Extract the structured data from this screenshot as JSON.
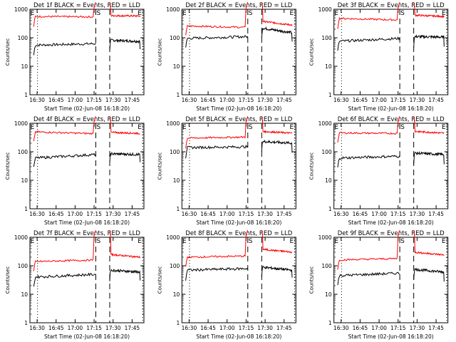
{
  "x_axis": {
    "label": "Start Time (02-Jun-08 16:18:20)",
    "ticks": [
      "16:30",
      "16:45",
      "17:00",
      "17:15",
      "17:30",
      "17:45"
    ],
    "range_min": [
      6,
      96
    ]
  },
  "y_axis": {
    "label": "Counts/sec",
    "ticks": [
      "1",
      "10",
      "100",
      "1000"
    ],
    "range": [
      1,
      1000
    ],
    "scale": "log"
  },
  "markers": {
    "E_label": "E",
    "S_label": "S",
    "dotted_min": [
      12,
      95
    ],
    "dashed_min": [
      58,
      69
    ]
  },
  "colors": {
    "events": "#000000",
    "lld": "#ff0000"
  },
  "chart_data": [
    {
      "type": "line",
      "title": "Det 1f BLACK = Events, RED = LLD",
      "ylabel": "Counts/sec",
      "xlabel": "Start Time (02-Jun-08 16:18:20)",
      "xlim": [
        6,
        96
      ],
      "ylim": [
        1,
        1000
      ],
      "yscale": "log",
      "series": [
        {
          "name": "Events",
          "pre": [
            55,
            62
          ],
          "post": [
            82,
            75
          ]
        },
        {
          "name": "LLD",
          "pre": [
            560,
            540
          ],
          "post": [
            600,
            580
          ]
        }
      ]
    },
    {
      "type": "line",
      "title": "Det 2f BLACK = Events, RED = LLD",
      "ylabel": "Counts/sec",
      "xlabel": "Start Time (02-Jun-08 16:18:20)",
      "xlim": [
        6,
        96
      ],
      "ylim": [
        1,
        1000
      ],
      "yscale": "log",
      "series": [
        {
          "name": "Events",
          "pre": [
            95,
            110
          ],
          "post": [
            220,
            150
          ]
        },
        {
          "name": "LLD",
          "pre": [
            260,
            230
          ],
          "post": [
            380,
            280
          ]
        }
      ]
    },
    {
      "type": "line",
      "title": "Det 3f BLACK = Events, RED = LLD",
      "ylabel": "Counts/sec",
      "xlabel": "Start Time (02-Jun-08 16:18:20)",
      "xlim": [
        6,
        96
      ],
      "ylim": [
        1,
        1000
      ],
      "yscale": "log",
      "series": [
        {
          "name": "Events",
          "pre": [
            75,
            95
          ],
          "post": [
            110,
            105
          ]
        },
        {
          "name": "LLD",
          "pre": [
            480,
            420
          ],
          "post": [
            620,
            560
          ]
        }
      ]
    },
    {
      "type": "line",
      "title": "Det 4f BLACK = Events, RED = LLD",
      "ylabel": "Counts/sec",
      "xlabel": "Start Time (02-Jun-08 16:18:20)",
      "xlim": [
        6,
        96
      ],
      "ylim": [
        1,
        1000
      ],
      "yscale": "log",
      "series": [
        {
          "name": "Events",
          "pre": [
            60,
            80
          ],
          "post": [
            85,
            80
          ]
        },
        {
          "name": "LLD",
          "pre": [
            500,
            430
          ],
          "post": [
            480,
            440
          ]
        }
      ]
    },
    {
      "type": "line",
      "title": "Det 5f BLACK = Events, RED = LLD",
      "ylabel": "Counts/sec",
      "xlabel": "Start Time (02-Jun-08 16:18:20)",
      "xlim": [
        6,
        96
      ],
      "ylim": [
        1,
        1000
      ],
      "yscale": "log",
      "series": [
        {
          "name": "Events",
          "pre": [
            140,
            150
          ],
          "post": [
            230,
            200
          ]
        },
        {
          "name": "LLD",
          "pre": [
            300,
            330
          ],
          "post": [
            520,
            450
          ]
        }
      ]
    },
    {
      "type": "line",
      "title": "Det 6f BLACK = Events, RED = LLD",
      "ylabel": "Counts/sec",
      "xlabel": "Start Time (02-Jun-08 16:18:20)",
      "xlim": [
        6,
        96
      ],
      "ylim": [
        1,
        1000
      ],
      "yscale": "log",
      "series": [
        {
          "name": "Events",
          "pre": [
            60,
            70
          ],
          "post": [
            90,
            80
          ]
        },
        {
          "name": "LLD",
          "pre": [
            460,
            440
          ],
          "post": [
            520,
            450
          ]
        }
      ]
    },
    {
      "type": "line",
      "title": "Det 7f BLACK = Events, RED = LLD",
      "ylabel": "Counts/sec",
      "xlabel": "Start Time (02-Jun-08 16:18:20)",
      "xlim": [
        6,
        96
      ],
      "ylim": [
        1,
        1000
      ],
      "yscale": "log",
      "series": [
        {
          "name": "Events",
          "pre": [
            40,
            50
          ],
          "post": [
            70,
            60
          ]
        },
        {
          "name": "LLD",
          "pre": [
            140,
            160
          ],
          "post": [
            250,
            200
          ]
        }
      ]
    },
    {
      "type": "line",
      "title": "Det 8f BLACK = Events, RED = LLD",
      "ylabel": "Counts/sec",
      "xlabel": "Start Time (02-Jun-08 16:18:20)",
      "xlim": [
        6,
        96
      ],
      "ylim": [
        1,
        1000
      ],
      "yscale": "log",
      "series": [
        {
          "name": "Events",
          "pre": [
            70,
            80
          ],
          "post": [
            90,
            70
          ]
        },
        {
          "name": "LLD",
          "pre": [
            200,
            220
          ],
          "post": [
            380,
            300
          ]
        }
      ]
    },
    {
      "type": "line",
      "title": "Det 9f BLACK = Events, RED = LLD",
      "ylabel": "Counts/sec",
      "xlabel": "Start Time (02-Jun-08 16:18:20)",
      "xlim": [
        6,
        96
      ],
      "ylim": [
        1,
        1000
      ],
      "yscale": "log",
      "series": [
        {
          "name": "Events",
          "pre": [
            45,
            55
          ],
          "post": [
            75,
            60
          ]
        },
        {
          "name": "LLD",
          "pre": [
            160,
            180
          ],
          "post": [
            300,
            240
          ]
        }
      ]
    }
  ]
}
